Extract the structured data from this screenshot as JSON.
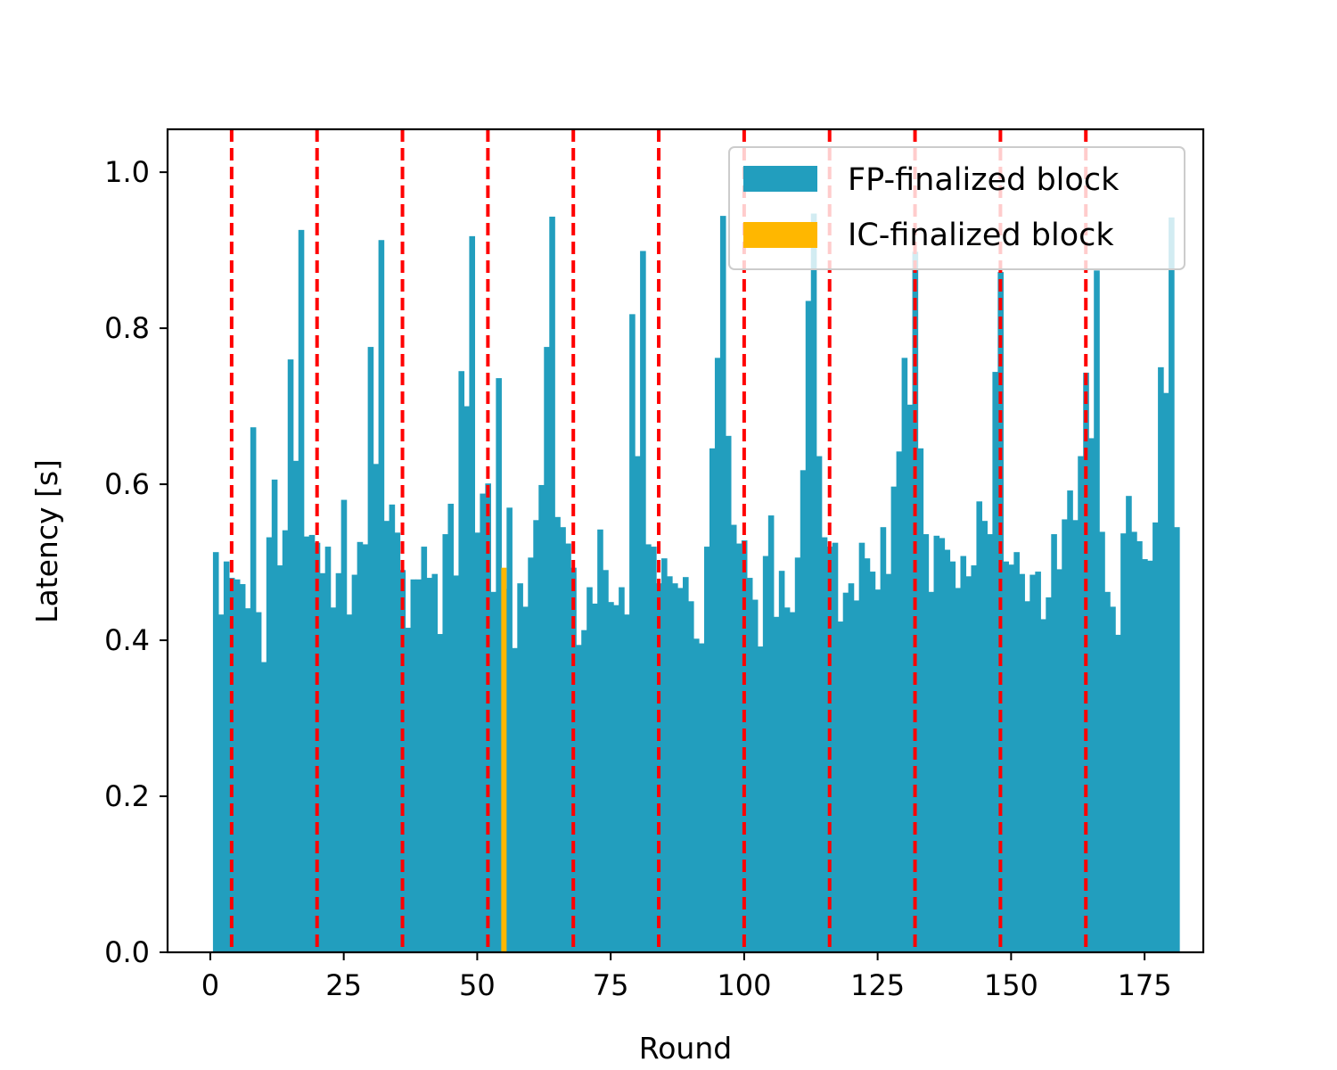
{
  "chart_data": {
    "type": "bar",
    "title": "",
    "xlabel": "Round",
    "ylabel": "Latency [s]",
    "xlim": [
      -8,
      186
    ],
    "ylim": [
      0,
      1.055
    ],
    "xticks": [
      0,
      25,
      50,
      75,
      100,
      125,
      150,
      175
    ],
    "yticks": [
      0.0,
      0.2,
      0.4,
      0.6,
      0.8,
      1.0
    ],
    "xtick_labels": [
      "0",
      "25",
      "50",
      "75",
      "100",
      "125",
      "150",
      "175"
    ],
    "ytick_labels": [
      "0.0",
      "0.2",
      "0.4",
      "0.6",
      "0.8",
      "1.0"
    ],
    "grid": false,
    "legend_position": "top-right",
    "rounds_start": 1,
    "series": [
      {
        "name": "FP-finalized block",
        "color": "#229ebe",
        "values": [
          0.513,
          0.433,
          0.501,
          0.48,
          0.478,
          0.472,
          0.441,
          0.673,
          0.436,
          0.372,
          0.532,
          0.606,
          0.496,
          0.541,
          0.76,
          0.63,
          0.926,
          0.533,
          0.535,
          0.525,
          0.486,
          0.52,
          0.442,
          0.486,
          0.58,
          0.433,
          0.484,
          0.526,
          0.523,
          0.776,
          0.626,
          0.913,
          0.553,
          0.574,
          0.538,
          0.49,
          0.416,
          0.478,
          0.478,
          0.52,
          0.48,
          0.485,
          0.408,
          0.536,
          0.575,
          0.483,
          0.745,
          0.7,
          0.918,
          0.538,
          0.588,
          0.601,
          0.462,
          0.736,
          0.466,
          0.57,
          0.39,
          0.473,
          0.443,
          0.506,
          0.554,
          0.599,
          0.776,
          0.943,
          0.558,
          0.545,
          0.524,
          0.493,
          0.394,
          0.413,
          0.468,
          0.447,
          0.542,
          0.49,
          0.449,
          0.445,
          0.468,
          0.433,
          0.818,
          0.636,
          0.899,
          0.523,
          0.52,
          0.473,
          0.505,
          0.482,
          0.473,
          0.467,
          0.481,
          0.45,
          0.402,
          0.396,
          0.52,
          0.646,
          0.762,
          0.944,
          0.662,
          0.548,
          0.524,
          0.528,
          0.48,
          0.452,
          0.392,
          0.508,
          0.56,
          0.43,
          0.489,
          0.442,
          0.436,
          0.506,
          0.618,
          0.835,
          0.947,
          0.636,
          0.532,
          0.52,
          0.525,
          0.424,
          0.461,
          0.473,
          0.451,
          0.525,
          0.505,
          0.488,
          0.465,
          0.545,
          0.485,
          0.597,
          0.642,
          0.762,
          0.702,
          0.898,
          0.646,
          0.536,
          0.462,
          0.534,
          0.531,
          0.516,
          0.501,
          0.467,
          0.508,
          0.482,
          0.496,
          0.578,
          0.553,
          0.536,
          0.744,
          0.872,
          0.501,
          0.497,
          0.513,
          0.485,
          0.45,
          0.484,
          0.488,
          0.427,
          0.455,
          0.536,
          0.491,
          0.555,
          0.592,
          0.554,
          0.636,
          0.743,
          0.659,
          0.874,
          0.539,
          0.462,
          0.443,
          0.407,
          0.537,
          0.585,
          0.539,
          0.527,
          0.504,
          0.502,
          0.551,
          0.75,
          0.717,
          0.942,
          0.545
        ]
      },
      {
        "name": "IC-finalized block",
        "color": "#ffb700",
        "rounds": [
          55
        ],
        "values": [
          0.493
        ]
      }
    ],
    "vlines": {
      "style": "dashed",
      "color": "#ff0000",
      "x": [
        4,
        20,
        36,
        52,
        68,
        84,
        100,
        116,
        132,
        148,
        164
      ]
    }
  }
}
